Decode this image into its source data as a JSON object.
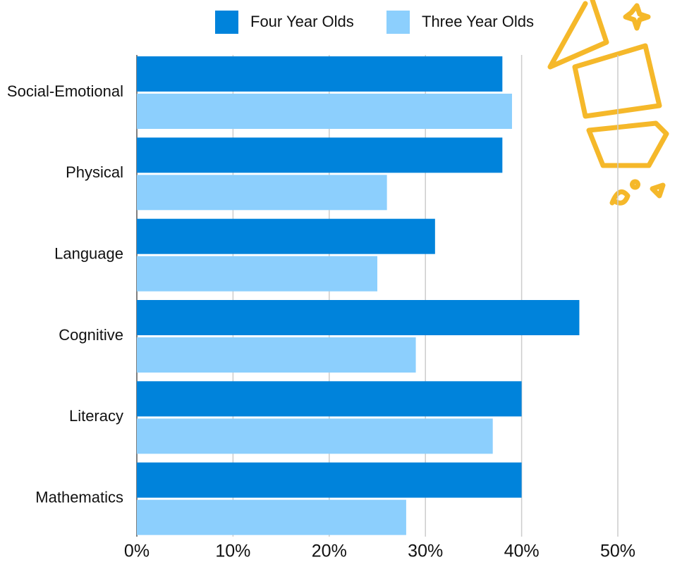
{
  "chart_data": {
    "type": "hbar",
    "categories": [
      "Social-Emotional",
      "Physical",
      "Language",
      "Cognitive",
      "Literacy",
      "Mathematics"
    ],
    "series": [
      {
        "name": "Four Year Olds",
        "color": "#0083db",
        "values": [
          38,
          38,
          31,
          46,
          40,
          40
        ]
      },
      {
        "name": "Three Year Olds",
        "color": "#8ccffd",
        "values": [
          39,
          26,
          25,
          29,
          37,
          28
        ]
      }
    ],
    "xlim": [
      0,
      50
    ],
    "xticks": [
      {
        "value": 0,
        "label": "0%"
      },
      {
        "value": 10,
        "label": "10%"
      },
      {
        "value": 20,
        "label": "20%"
      },
      {
        "value": 30,
        "label": "30%"
      },
      {
        "value": 40,
        "label": "40%"
      },
      {
        "value": 50,
        "label": "50%"
      }
    ],
    "grid": true,
    "legend": "top"
  }
}
